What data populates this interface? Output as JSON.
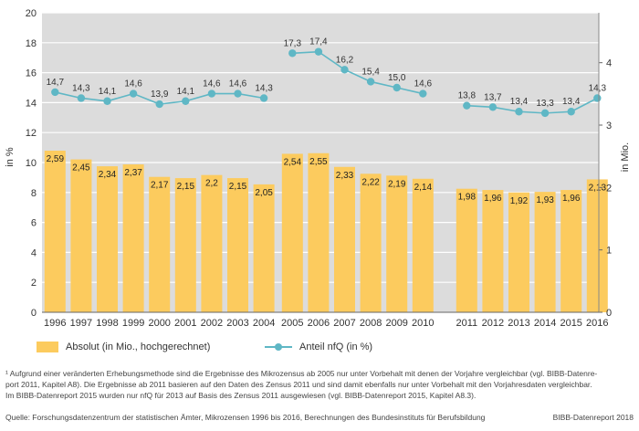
{
  "chart_data": {
    "type": "bar+line",
    "categories": [
      "1996",
      "1997",
      "1998",
      "1999",
      "2000",
      "2001",
      "2002",
      "2003",
      "2004",
      "2005",
      "2006",
      "2007",
      "2008",
      "2009",
      "2010",
      "2011",
      "2012",
      "2013",
      "2014",
      "2015",
      "2016"
    ],
    "groups": [
      [
        0,
        9
      ],
      [
        9,
        15
      ],
      [
        15,
        21
      ]
    ],
    "series": [
      {
        "name": "Absolut (in Mio., hochgerechnet)",
        "axis": "right",
        "kind": "bar",
        "values": [
          2.59,
          2.45,
          2.34,
          2.37,
          2.17,
          2.15,
          2.2,
          2.15,
          2.05,
          2.54,
          2.55,
          2.33,
          2.22,
          2.19,
          2.14,
          1.98,
          1.96,
          1.92,
          1.93,
          1.96,
          2.13
        ],
        "labels": [
          "2,59",
          "2,45",
          "2,34",
          "2,37",
          "2,17",
          "2,15",
          "2,2",
          "2,15",
          "2,05",
          "2,54",
          "2,55",
          "2,33",
          "2,22",
          "2,19",
          "2,14",
          "1,98",
          "1,96",
          "1,92",
          "1,93",
          "1,96",
          "2,13"
        ]
      },
      {
        "name": "Anteil nfQ (in %)",
        "axis": "left",
        "kind": "line",
        "values": [
          14.7,
          14.3,
          14.1,
          14.6,
          13.9,
          14.1,
          14.6,
          14.6,
          14.3,
          17.3,
          17.4,
          16.2,
          15.4,
          15.0,
          14.6,
          13.8,
          13.7,
          13.4,
          13.3,
          13.4,
          14.3
        ],
        "labels": [
          "14,7",
          "14,3",
          "14,1",
          "14,6",
          "13,9",
          "14,1",
          "14,6",
          "14,6",
          "14,3",
          "17,3",
          "17,4",
          "16,2",
          "15,4",
          "15,0",
          "14,6",
          "13,8",
          "13,7",
          "13,4",
          "13,3",
          "13,4",
          "14,3"
        ]
      }
    ],
    "y_left": {
      "label": "in %",
      "min": 0,
      "max": 20,
      "ticks": [
        "0",
        "2",
        "4",
        "6",
        "8",
        "10",
        "12",
        "14",
        "16",
        "18",
        "20"
      ]
    },
    "y_right": {
      "label": "in  Mio.",
      "min": 0,
      "max": 4.8,
      "ticks": [
        "0",
        "1",
        "2",
        "3",
        "4"
      ]
    },
    "grid": true,
    "colors": {
      "bar": "#fccb5e",
      "line": "#5fb7c5",
      "plot_bg": "#dcdcdc",
      "grid": "#ffffff"
    }
  },
  "legend": {
    "bar_label": "Absolut (in Mio., hochgerechnet)",
    "line_label": "Anteil nfQ (in %)"
  },
  "footnote": {
    "line1": "¹ Aufgrund einer veränderten Erhebungsmethode sind die Ergebnisse des Mikrozensus ab 2005 nur unter Vorbehalt mit denen der Vorjahre vergleichbar (vgl. BIBB-Datenre-",
    "line2": "port 2011, Kapitel A8). Die Ergebnisse ab 2011 basieren auf den Daten des Zensus 2011 und sind damit ebenfalls nur unter Vorbehalt mit den Vorjahresdaten vergleichbar.",
    "line3": "Im BIBB-Datenreport 2015 wurden nur nfQ für 2013 auf Basis des Zensus 2011 ausgewiesen (vgl. BIBB-Datenreport 2015, Kapitel A8.3)."
  },
  "source": {
    "text": "Quelle: Forschungsdatenzentrum der statistischen Ämter, Mikrozensen 1996 bis 2016, Berechnungen des Bundesinstituts für Berufsbildung",
    "credit": "BIBB-Datenreport 2018"
  }
}
